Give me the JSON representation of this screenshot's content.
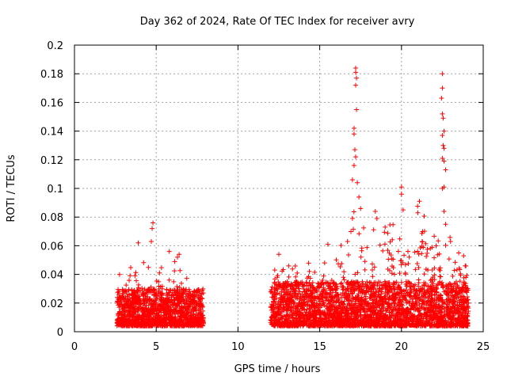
{
  "chart_data": {
    "type": "scatter",
    "title": "Day 362 of 2024, Rate Of TEC Index for receiver avry",
    "xlabel": "GPS time / hours",
    "ylabel": "ROTI / TECUs",
    "xlim": [
      0,
      25
    ],
    "ylim": [
      0,
      0.2
    ],
    "xticks": [
      0,
      5,
      10,
      15,
      20,
      25
    ],
    "yticks": [
      0,
      0.02,
      0.04,
      0.06,
      0.08,
      0.1,
      0.12,
      0.14,
      0.16,
      0.18,
      0.2
    ],
    "xtick_labels": [
      "0",
      "5",
      "10",
      "15",
      "20",
      "25"
    ],
    "ytick_labels": [
      "0",
      "0.02",
      "0.04",
      "0.06",
      "0.08",
      "0.1",
      "0.12",
      "0.14",
      "0.16",
      "0.18",
      "0.2"
    ],
    "grid": true,
    "marker": "plus",
    "series": [
      {
        "name": "ROTI",
        "color": "#ff0000",
        "segments": [
          {
            "x_range": [
              2.6,
              7.9
            ],
            "baseline": [
              0.004,
              0.03
            ]
          },
          {
            "x_range": [
              12.0,
              24.1
            ],
            "baseline": [
              0.004,
              0.035
            ]
          }
        ],
        "points": [
          {
            "x": 3.9,
            "y": 0.062
          },
          {
            "x": 4.8,
            "y": 0.076
          },
          {
            "x": 4.75,
            "y": 0.072
          },
          {
            "x": 4.7,
            "y": 0.063
          },
          {
            "x": 5.8,
            "y": 0.056
          },
          {
            "x": 6.4,
            "y": 0.054
          },
          {
            "x": 6.3,
            "y": 0.052
          },
          {
            "x": 3.7,
            "y": 0.039
          },
          {
            "x": 5.2,
            "y": 0.041
          },
          {
            "x": 12.5,
            "y": 0.054
          },
          {
            "x": 12.4,
            "y": 0.038
          },
          {
            "x": 15.5,
            "y": 0.061
          },
          {
            "x": 15.3,
            "y": 0.048
          },
          {
            "x": 16.7,
            "y": 0.063
          },
          {
            "x": 17.2,
            "y": 0.184
          },
          {
            "x": 17.2,
            "y": 0.181
          },
          {
            "x": 17.25,
            "y": 0.177
          },
          {
            "x": 17.2,
            "y": 0.172
          },
          {
            "x": 17.25,
            "y": 0.155
          },
          {
            "x": 17.1,
            "y": 0.142
          },
          {
            "x": 17.1,
            "y": 0.138
          },
          {
            "x": 17.15,
            "y": 0.127
          },
          {
            "x": 17.2,
            "y": 0.122
          },
          {
            "x": 17.1,
            "y": 0.116
          },
          {
            "x": 17.0,
            "y": 0.106
          },
          {
            "x": 17.3,
            "y": 0.104
          },
          {
            "x": 17.4,
            "y": 0.094
          },
          {
            "x": 17.5,
            "y": 0.086
          },
          {
            "x": 18.4,
            "y": 0.084
          },
          {
            "x": 18.5,
            "y": 0.079
          },
          {
            "x": 19.0,
            "y": 0.073
          },
          {
            "x": 20.0,
            "y": 0.101
          },
          {
            "x": 20.0,
            "y": 0.096
          },
          {
            "x": 20.1,
            "y": 0.085
          },
          {
            "x": 21.1,
            "y": 0.091
          },
          {
            "x": 21.0,
            "y": 0.083
          },
          {
            "x": 22.5,
            "y": 0.18
          },
          {
            "x": 22.5,
            "y": 0.17
          },
          {
            "x": 22.45,
            "y": 0.163
          },
          {
            "x": 22.5,
            "y": 0.152
          },
          {
            "x": 22.55,
            "y": 0.149
          },
          {
            "x": 22.6,
            "y": 0.14
          },
          {
            "x": 22.5,
            "y": 0.137
          },
          {
            "x": 22.55,
            "y": 0.13
          },
          {
            "x": 22.6,
            "y": 0.128
          },
          {
            "x": 22.5,
            "y": 0.121
          },
          {
            "x": 22.6,
            "y": 0.119
          },
          {
            "x": 22.7,
            "y": 0.113
          },
          {
            "x": 22.6,
            "y": 0.101
          },
          {
            "x": 22.5,
            "y": 0.1
          },
          {
            "x": 22.6,
            "y": 0.084
          },
          {
            "x": 22.7,
            "y": 0.075
          },
          {
            "x": 23.0,
            "y": 0.063
          },
          {
            "x": 23.5,
            "y": 0.055
          },
          {
            "x": 23.8,
            "y": 0.053
          },
          {
            "x": 23.9,
            "y": 0.046
          }
        ]
      }
    ]
  }
}
